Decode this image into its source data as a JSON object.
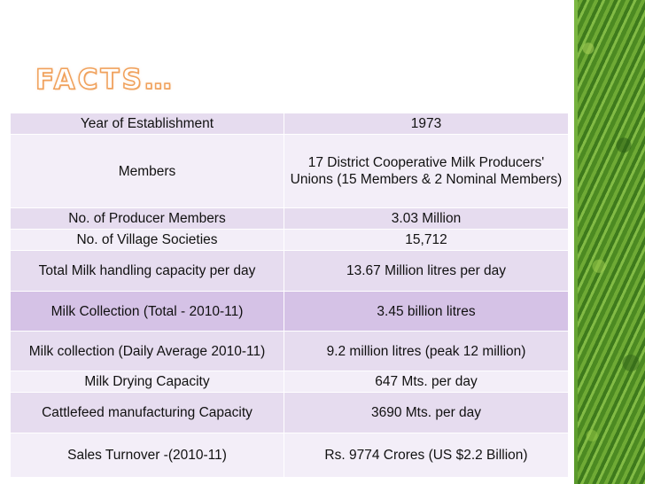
{
  "title": "FACTS…",
  "rows": [
    {
      "label": "Year of Establishment",
      "value": "1973"
    },
    {
      "label": "Members",
      "value": "17 District Cooperative Milk Producers' Unions (15 Members & 2 Nominal Members)"
    },
    {
      "label": "No. of Producer Members",
      "value": "3.03 Million"
    },
    {
      "label": "No. of Village Societies",
      "value": "15,712"
    },
    {
      "label": "Total Milk handling capacity per day",
      "value": "13.67 Million litres per day"
    },
    {
      "label": "Milk Collection (Total - 2010-11)",
      "value": "3.45 billion litres"
    },
    {
      "label": "Milk collection (Daily Average 2010-11)",
      "value": "9.2 million litres (peak 12 million)"
    },
    {
      "label": "Milk Drying Capacity",
      "value": "647 Mts. per day"
    },
    {
      "label": "Cattlefeed manufacturing Capacity",
      "value": "3690 Mts. per day"
    },
    {
      "label": "Sales Turnover -(2010-11)",
      "value": "Rs. 9774 Crores (US $2.2 Billion)"
    }
  ],
  "colors": {
    "title_outline": "#f0a05a",
    "row_odd": "#e6dcef",
    "row_even": "#f3eef8",
    "row_highlight": "#d5c2e6",
    "side_bar": "#5a9a2b"
  }
}
